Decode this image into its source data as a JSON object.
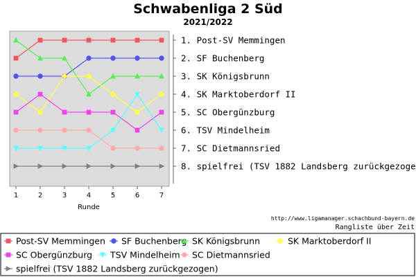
{
  "chart_data": {
    "type": "line",
    "title": "Schwabenliga 2 Süd",
    "subtitle": "2021/2022",
    "xlabel": "Runde",
    "x": [
      1,
      2,
      3,
      4,
      5,
      6,
      7
    ],
    "ylim": [
      8,
      1
    ],
    "y_inverted": true,
    "grid": false,
    "legend_placement": "bottom",
    "source": "http://www.ligamanager.schachbund-bayern.de",
    "caption": "Rangliste über Zeit",
    "ranking_labels": [
      "1. Post-SV Memmingen",
      "2. SF Buchenberg",
      "3. SK Königsbrunn",
      "4. SK Marktoberdorf II",
      "5. SC Obergünzburg",
      "6. TSV Mindelheim",
      "7. SC Dietmannsried",
      "8. spielfrei (TSV 1882 Landsberg zurückgezogen)"
    ],
    "series": [
      {
        "name": "Post-SV Memmingen",
        "color": "#f0565e",
        "marker": "square",
        "values": [
          2,
          1,
          1,
          1,
          1,
          1,
          1
        ]
      },
      {
        "name": "SF Buchenberg",
        "color": "#5555ee",
        "marker": "circle",
        "values": [
          3,
          3,
          3,
          2,
          2,
          2,
          2
        ]
      },
      {
        "name": "SK Königsbrunn",
        "color": "#55ee55",
        "marker": "triangle-up",
        "values": [
          1,
          2,
          2,
          4,
          3,
          3,
          3
        ]
      },
      {
        "name": "SK Marktoberdorf II",
        "color": "#ffff44",
        "marker": "diamond",
        "values": [
          4,
          5,
          3,
          3,
          4,
          5,
          4
        ]
      },
      {
        "name": "SC Obergünzburg",
        "color": "#ee44ee",
        "marker": "square",
        "values": [
          5,
          4,
          5,
          5,
          5,
          6,
          5
        ]
      },
      {
        "name": "TSV Mindelheim",
        "color": "#55ffff",
        "marker": "triangle-down",
        "values": [
          7,
          7,
          7,
          7,
          6,
          4,
          6
        ]
      },
      {
        "name": "SC Dietmannsried",
        "color": "#ffaaaa",
        "marker": "circle",
        "values": [
          6,
          6,
          6,
          6,
          7,
          7,
          7
        ]
      },
      {
        "name": "spielfrei (TSV 1882 Landsberg zurückgezogen)",
        "color": "#808080",
        "marker": "triangle-right",
        "values": [
          8,
          8,
          8,
          8,
          8,
          8,
          8
        ]
      }
    ]
  }
}
